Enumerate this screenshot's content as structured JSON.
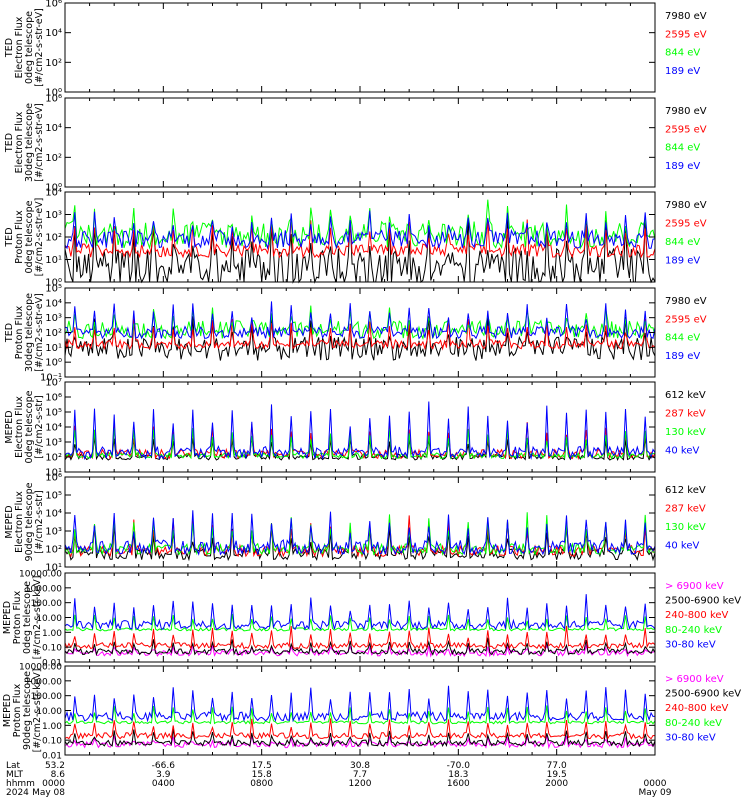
{
  "figure": {
    "footer": {
      "row_labels": [
        "Lat",
        "MLT",
        "hhmm",
        "2024"
      ],
      "lat": [
        "53.2",
        "-66.6",
        "17.5",
        "30.8",
        "-70.0",
        "77.0"
      ],
      "mlt": [
        "8.6",
        "3.9",
        "15.8",
        "7.7",
        "18.3",
        "19.5"
      ],
      "hhmm": [
        "0000",
        "0400",
        "0800",
        "1200",
        "1600",
        "2000",
        "0000"
      ],
      "dates": [
        "May 08",
        "May 09"
      ]
    }
  },
  "colors": {
    "blue": "#0000ff",
    "red": "#ff0000",
    "green": "#00ff00",
    "black": "#000000",
    "magenta": "#ff00ff"
  },
  "chart_data": [
    {
      "type": "line",
      "ylabel": [
        "TED",
        "Electron Flux",
        "0deg telescope",
        "[#/cm2-s-str-eV]"
      ],
      "yscale": "log",
      "ylim": [
        1,
        1000000
      ],
      "yticks": [
        "10⁰",
        "10²",
        "10⁴",
        "10⁶"
      ],
      "xlim": [
        0,
        24
      ],
      "series": [
        {
          "name": "7980 eV",
          "color": "#000000",
          "base": 1.5,
          "noise": 0.9,
          "peak": 2.9
        },
        {
          "name": "2595 eV",
          "color": "#ff0000",
          "base": 1.5,
          "noise": 0.5,
          "peak": 3.6
        },
        {
          "name": "844 eV",
          "color": "#00ff00",
          "base": 2.3,
          "noise": 0.4,
          "peak": 4.2
        },
        {
          "name": "189 eV",
          "color": "#0000ff",
          "base": 3.2,
          "noise": 0.5,
          "peak": 4.7
        }
      ]
    },
    {
      "type": "line",
      "ylabel": [
        "TED",
        "Electron Flux",
        "30deg telescope",
        "[#/cm2-s-str-eV]"
      ],
      "yscale": "log",
      "ylim": [
        1,
        1000000
      ],
      "yticks": [
        "10⁰",
        "10²",
        "10⁴",
        "10⁶"
      ],
      "xlim": [
        0,
        24
      ],
      "series": [
        {
          "name": "7980 eV",
          "color": "#000000",
          "base": 0.7,
          "noise": 0.8,
          "peak": 3.1
        },
        {
          "name": "2595 eV",
          "color": "#ff0000",
          "base": 1.0,
          "noise": 0.5,
          "peak": 3.8
        },
        {
          "name": "844 eV",
          "color": "#00ff00",
          "base": 1.9,
          "noise": 0.4,
          "peak": 4.5
        },
        {
          "name": "189 eV",
          "color": "#0000ff",
          "base": 2.6,
          "noise": 0.5,
          "peak": 4.8
        }
      ]
    },
    {
      "type": "line",
      "ylabel": [
        "TED",
        "Proton Flux",
        "0deg telescope",
        "[#/cm2-s-str-eV]"
      ],
      "yscale": "log",
      "ylim": [
        0,
        4
      ],
      "yticks": [
        "10⁰",
        "10¹",
        "10²",
        "10³",
        "10⁴"
      ],
      "xlim": [
        0,
        24
      ],
      "series": [
        {
          "name": "7980 eV",
          "color": "#000000",
          "base": 0.6,
          "noise": 0.9,
          "peak": 2.4
        },
        {
          "name": "2595 eV",
          "color": "#ff0000",
          "base": 1.4,
          "noise": 0.3,
          "peak": 2.7
        },
        {
          "name": "844 eV",
          "color": "#00ff00",
          "base": 2.1,
          "noise": 0.6,
          "peak": 3.2
        },
        {
          "name": "189 eV",
          "color": "#0000ff",
          "base": 1.9,
          "noise": 0.4,
          "peak": 3.0
        }
      ]
    },
    {
      "type": "line",
      "ylabel": [
        "TED",
        "Proton Flux",
        "30deg telescope",
        "[#/cm2-s-str-eV]"
      ],
      "yscale": "log",
      "ylim": [
        -1,
        5
      ],
      "yticks": [
        "10⁻¹",
        "10⁰",
        "10¹",
        "10²",
        "10³",
        "10⁴",
        "10⁵"
      ],
      "xlim": [
        0,
        24
      ],
      "series": [
        {
          "name": "7980 eV",
          "color": "#000000",
          "base": 0.9,
          "noise": 0.8,
          "peak": 2.6
        },
        {
          "name": "2595 eV",
          "color": "#ff0000",
          "base": 1.2,
          "noise": 0.3,
          "peak": 2.8
        },
        {
          "name": "844 eV",
          "color": "#00ff00",
          "base": 2.2,
          "noise": 0.6,
          "peak": 3.4
        },
        {
          "name": "189 eV",
          "color": "#0000ff",
          "base": 2.0,
          "noise": 0.4,
          "peak": 3.9
        }
      ]
    },
    {
      "type": "line",
      "ylabel": [
        "MEPED",
        "Electron Flux",
        "0deg telescope",
        "[#/cm2-s-str]"
      ],
      "yscale": "log",
      "ylim": [
        1,
        7
      ],
      "yticks": [
        "10¹",
        "10²",
        "10³",
        "10⁴",
        "10⁵",
        "10⁶",
        "10⁷"
      ],
      "xlim": [
        0,
        24
      ],
      "series": [
        {
          "name": "612 keV",
          "color": "#000000",
          "base": 2.0,
          "noise": 0.2,
          "peak": 3.5
        },
        {
          "name": "287 keV",
          "color": "#ff0000",
          "base": 2.2,
          "noise": 0.3,
          "peak": 4.3
        },
        {
          "name": "130 keV",
          "color": "#00ff00",
          "base": 2.1,
          "noise": 0.2,
          "peak": 4.0
        },
        {
          "name": "40 keV",
          "color": "#0000ff",
          "base": 2.3,
          "noise": 0.4,
          "peak": 5.5
        }
      ]
    },
    {
      "type": "line",
      "ylabel": [
        "MEPED",
        "Electron Flux",
        "90deg telescope",
        "[#/cm2-s-str]"
      ],
      "yscale": "log",
      "ylim": [
        1,
        6
      ],
      "yticks": [
        "10¹",
        "10²",
        "10³",
        "10⁴",
        "10⁵",
        "10⁶"
      ],
      "xlim": [
        0,
        24
      ],
      "series": [
        {
          "name": "612 keV",
          "color": "#000000",
          "base": 1.7,
          "noise": 0.3,
          "peak": 3.2
        },
        {
          "name": "287 keV",
          "color": "#ff0000",
          "base": 1.9,
          "noise": 0.3,
          "peak": 3.6
        },
        {
          "name": "130 keV",
          "color": "#00ff00",
          "base": 2.0,
          "noise": 0.3,
          "peak": 3.8
        },
        {
          "name": "40 keV",
          "color": "#0000ff",
          "base": 2.1,
          "noise": 0.4,
          "peak": 3.9
        }
      ]
    },
    {
      "type": "line",
      "ylabel": [
        "MEPED",
        "Proton Flux",
        "0deg telescope",
        "[#/cm2-s-str-keV]"
      ],
      "yscale": "log",
      "ylim": [
        -2,
        4
      ],
      "yticks": [
        "0.01",
        "0.10",
        "1.00",
        "10.00",
        "100.00",
        "1000.00",
        "10000.00"
      ],
      "xlim": [
        0,
        24
      ],
      "series": [
        {
          "name": "> 6900 keV",
          "color": "#ff00ff",
          "base": -1.4,
          "noise": 0.2,
          "peak": -0.9
        },
        {
          "name": "2500-6900 keV",
          "color": "#000000",
          "base": -1.3,
          "noise": 0.2,
          "peak": -0.5
        },
        {
          "name": "240-800 keV",
          "color": "#ff0000",
          "base": -0.9,
          "noise": 0.2,
          "peak": 0.3
        },
        {
          "name": "80-240 keV",
          "color": "#00ff00",
          "base": 0.2,
          "noise": 0.1,
          "peak": 1.2
        },
        {
          "name": "30-80 keV",
          "color": "#0000ff",
          "base": 0.5,
          "noise": 0.3,
          "peak": 2.4
        }
      ]
    },
    {
      "type": "line",
      "ylabel": [
        "MEPED",
        "Proton Flux",
        "90deg telescope",
        "[#/cm2-s-str-keV]"
      ],
      "yscale": "log",
      "ylim": [
        -2,
        4
      ],
      "yticks": [
        "0.01",
        "0.10",
        "1.00",
        "10.00",
        "100.00",
        "1000.00",
        "10000.00"
      ],
      "xlim": [
        0,
        24
      ],
      "series": [
        {
          "name": "> 6900 keV",
          "color": "#ff00ff",
          "base": -1.3,
          "noise": 0.2,
          "peak": -0.8
        },
        {
          "name": "2500-6900 keV",
          "color": "#000000",
          "base": -1.2,
          "noise": 0.2,
          "peak": -0.4
        },
        {
          "name": "240-800 keV",
          "color": "#ff0000",
          "base": -0.7,
          "noise": 0.2,
          "peak": 0.4
        },
        {
          "name": "80-240 keV",
          "color": "#00ff00",
          "base": 0.2,
          "noise": 0.1,
          "peak": 1.3
        },
        {
          "name": "30-80 keV",
          "color": "#0000ff",
          "base": 0.6,
          "noise": 0.3,
          "peak": 2.6
        }
      ]
    }
  ]
}
